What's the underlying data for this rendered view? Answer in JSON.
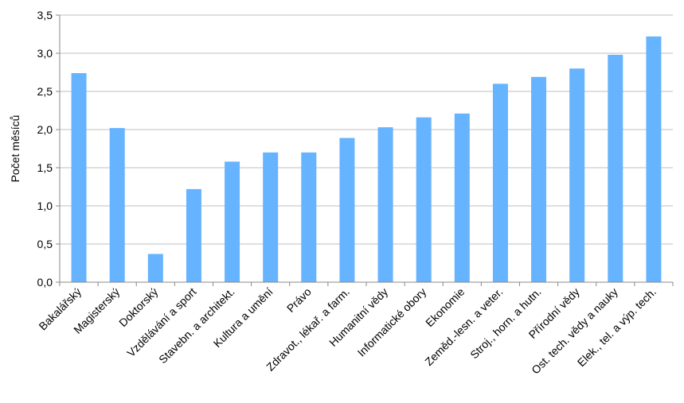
{
  "chart_data": {
    "type": "bar",
    "title": "",
    "xlabel": "",
    "ylabel": "Počet měsíců",
    "ylim": [
      0,
      3.5
    ],
    "y_ticks": [
      "0,0",
      "0,5",
      "1,0",
      "1,5",
      "2,0",
      "2,5",
      "3,0",
      "3,5"
    ],
    "grid": true,
    "bar_color": "#66b3ff",
    "categories": [
      "Bakalářský",
      "Magisterský",
      "Doktorský",
      "Vzdělávání a sport",
      "Stavebn. a architekt.",
      "Kultura a umění",
      "Právo",
      "Zdravot., lékař. a farm.",
      "Humanitní vědy",
      "Informatické obory",
      "Ekonomie",
      "Zeměd.-lesn. a veter.",
      "Stroj., horn. a hutn.",
      "Přírodní vědy",
      "Ost. tech. vědy a nauky",
      "Elek., tel. a výp. tech."
    ],
    "values": [
      2.74,
      2.02,
      0.37,
      1.22,
      1.58,
      1.7,
      1.7,
      1.89,
      2.03,
      2.16,
      2.21,
      2.6,
      2.69,
      2.8,
      2.98,
      3.22
    ]
  }
}
